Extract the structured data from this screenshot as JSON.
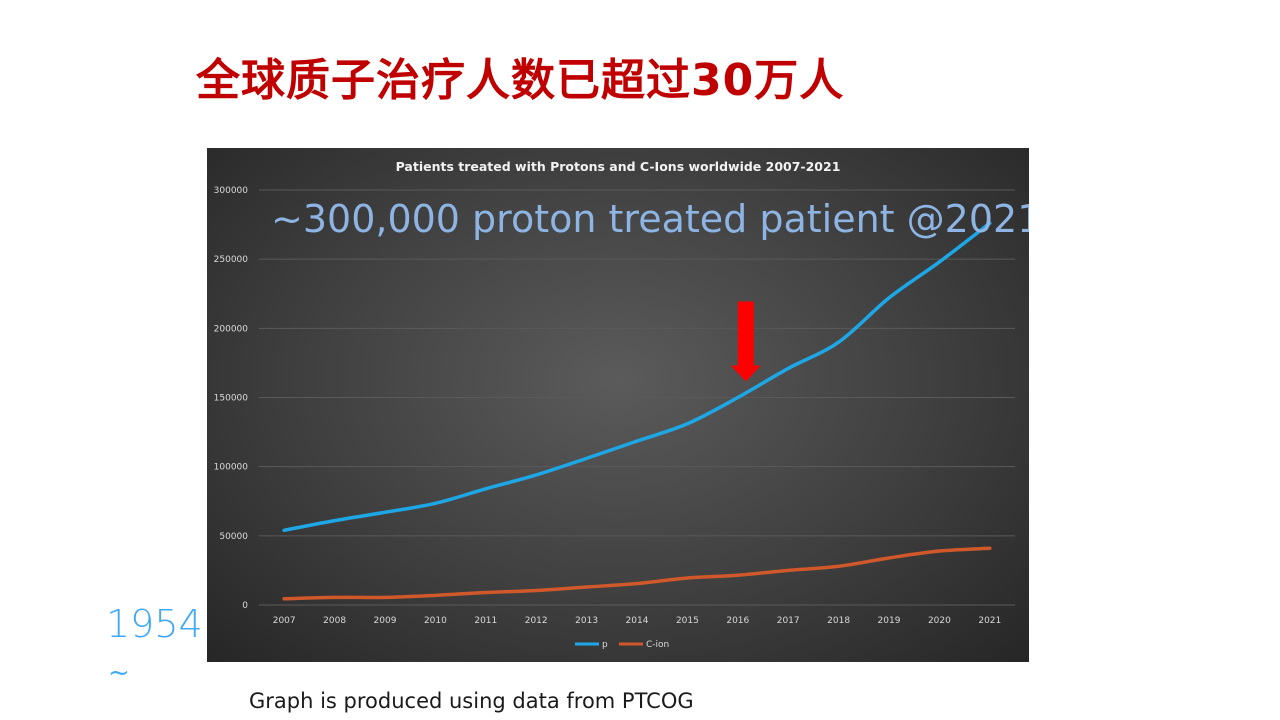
{
  "slide": {
    "title": "全球质子治疗人数已超过30万人",
    "side_year": "1954",
    "side_tilde": "~",
    "source_note": "Graph is produced using data from PTCOG"
  },
  "chart_data": {
    "type": "line",
    "title": "Patients treated with Protons and C-Ions worldwide 2007-2021",
    "annotation": "~300,000 proton treated patient @2021",
    "x": [
      2007,
      2008,
      2009,
      2010,
      2011,
      2012,
      2013,
      2014,
      2015,
      2016,
      2017,
      2018,
      2019,
      2020,
      2021
    ],
    "ylim": [
      0,
      300000
    ],
    "yticks": [
      0,
      50000,
      100000,
      150000,
      200000,
      250000,
      300000
    ],
    "grid": true,
    "legend": "bottom",
    "series": [
      {
        "name": "p",
        "color": "#1ea7e6",
        "values": [
          54000,
          61000,
          67000,
          73500,
          84000,
          94000,
          106000,
          118500,
          131000,
          150000,
          171000,
          190000,
          222000,
          248000,
          276000
        ]
      },
      {
        "name": "C-ion",
        "color": "#d0582a",
        "values": [
          4500,
          5500,
          5500,
          7000,
          9000,
          10500,
          13000,
          15500,
          19500,
          21500,
          25000,
          28000,
          34000,
          39000,
          41000
        ]
      }
    ],
    "highlight": {
      "at_x": 2016,
      "arrow_color": "#ff0000",
      "icon": "down-arrow-icon"
    }
  }
}
